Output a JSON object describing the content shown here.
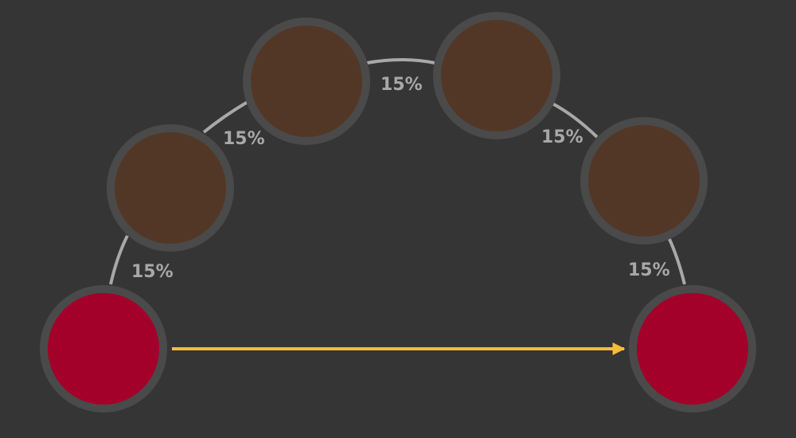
{
  "colors": {
    "background": "#353535",
    "node_border": "#4a4a4a",
    "intermediate_fill": "#533726",
    "endpoint_fill": "#a3002a",
    "path_edge": "#a8a8a8",
    "direct_edge": "#f5bc37"
  },
  "nodes": [
    {
      "id": "start",
      "kind": "endpoint"
    },
    {
      "id": "hop-1",
      "kind": "intermediate"
    },
    {
      "id": "hop-2",
      "kind": "intermediate"
    },
    {
      "id": "hop-3",
      "kind": "intermediate"
    },
    {
      "id": "hop-4",
      "kind": "intermediate"
    },
    {
      "id": "end",
      "kind": "endpoint"
    }
  ],
  "path_edges": [
    {
      "from": "start",
      "to": "hop-1",
      "label": "15%"
    },
    {
      "from": "hop-1",
      "to": "hop-2",
      "label": "15%"
    },
    {
      "from": "hop-2",
      "to": "hop-3",
      "label": "15%"
    },
    {
      "from": "hop-3",
      "to": "hop-4",
      "label": "15%"
    },
    {
      "from": "hop-4",
      "to": "end",
      "label": "15%"
    }
  ],
  "direct_edge": {
    "from": "start",
    "to": "end"
  }
}
